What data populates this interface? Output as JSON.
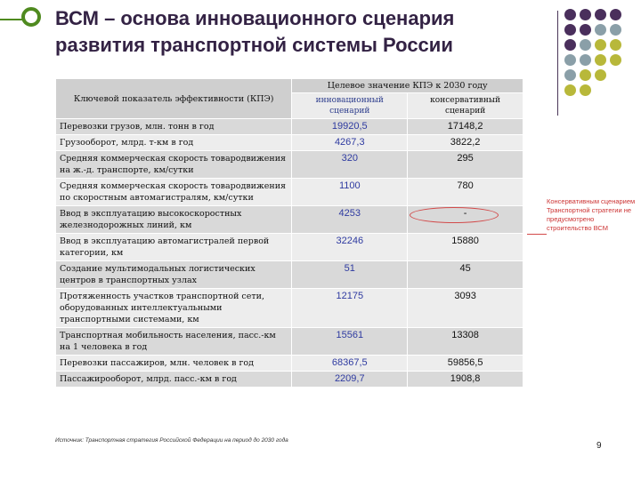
{
  "slide": {
    "title": "ВСМ – основа инновационного сценария развития транспортной системы России",
    "page_number": "9",
    "source": "Источник: Транспортная стратегия Российской Федерации на период до 2030 года",
    "note": "Консервативным сценарием Транспортной стратегии не предусмотрено строительство ВСМ",
    "colors": {
      "accent_green": "#4f8a1f",
      "title_purple": "#332244",
      "inno_blue": "#2e3aa0",
      "note_red": "#cc3333"
    }
  },
  "table": {
    "header_kpi": "Ключевой показатель эффективности (КПЭ)",
    "header_target": "Целевое значение КПЭ к 2030 году",
    "header_inno": "инновационный сценарий",
    "header_cons": "консервативный сценарий",
    "rows": [
      {
        "label": "Перевозки грузов, млн. тонн в год",
        "inno": "19920,5",
        "cons": "17148,2"
      },
      {
        "label": "Грузооборот, млрд. т-км в год",
        "inno": "4267,3",
        "cons": "3822,2"
      },
      {
        "label": "Средняя коммерческая скорость товародвижения на ж.-д. транспорте, км/сутки",
        "inno": "320",
        "cons": "295"
      },
      {
        "label": "Средняя коммерческая скорость товародвижения по скоростным автомагистралям, км/сутки",
        "inno": "1100",
        "cons": "780"
      },
      {
        "label": "Ввод в эксплуатацию высокоскоростных железнодорожных линий, км",
        "inno": "4253",
        "cons": "-"
      },
      {
        "label": "Ввод в эксплуатацию автомагистралей первой категории, км",
        "inno": "32246",
        "cons": "15880"
      },
      {
        "label": "Создание мультимодальных логистических центров в транспортных узлах",
        "inno": "51",
        "cons": "45"
      },
      {
        "label": "Протяженность участков транспортной сети, оборудованных интеллектуальными транспортными системами, км",
        "inno": "12175",
        "cons": "3093"
      },
      {
        "label": "Транспортная мобильность населения, пасс.-км на 1 человека в год",
        "inno": "15561",
        "cons": "13308"
      },
      {
        "label": "Перевозки пассажиров, млн. человек в год",
        "inno": "68367,5",
        "cons": "59856,5"
      },
      {
        "label": "Пассажирооборот, млрд. пасс.-км в год",
        "inno": "2209,7",
        "cons": "1908,8"
      }
    ]
  }
}
